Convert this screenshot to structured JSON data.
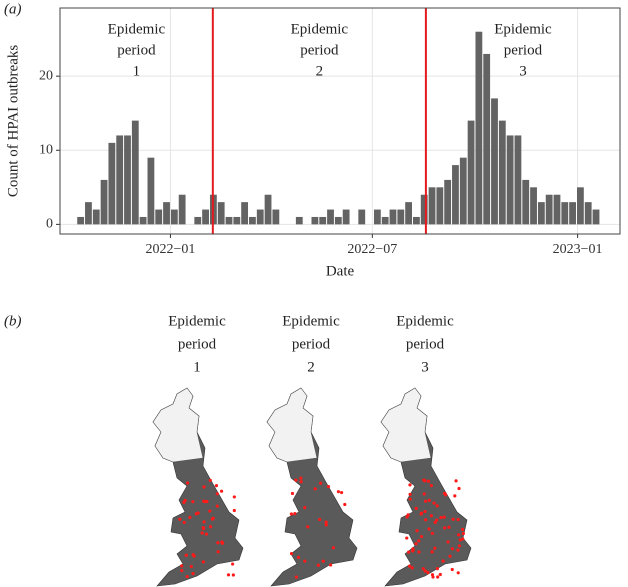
{
  "panel_a_label": "(a)",
  "panel_b_label": "(b)",
  "chart_data": {
    "type": "histogram",
    "ylabel": "Count of HPAI outbreaks",
    "xlabel": "Date",
    "color": "#636363",
    "bins": [
      -84,
      -77,
      -70,
      -63,
      -56,
      -49,
      -42,
      -35,
      -28,
      -21,
      -14,
      -7,
      0,
      7,
      14,
      21,
      28,
      35,
      42,
      49,
      56,
      63,
      70,
      77,
      84,
      91,
      98,
      105,
      112,
      119,
      126,
      133,
      140,
      147,
      154,
      161,
      168,
      175,
      182,
      189,
      196,
      203,
      210,
      217,
      224,
      231,
      238,
      245,
      252,
      259,
      266,
      273,
      280,
      287,
      294,
      301,
      308,
      315,
      322,
      329,
      336,
      343,
      350,
      357,
      364,
      371,
      378,
      385
    ],
    "values": [
      1,
      3,
      2,
      6,
      11,
      12,
      12,
      14,
      1,
      9,
      2,
      3,
      2,
      4,
      0,
      1,
      2,
      4,
      3,
      1,
      1,
      3,
      1,
      2,
      4,
      2,
      0,
      0,
      1,
      0,
      1,
      1,
      2,
      1,
      2,
      0,
      2,
      0,
      2,
      1,
      2,
      2,
      3,
      1,
      4,
      5,
      5,
      6,
      8,
      9,
      14,
      26,
      23,
      17,
      14,
      12,
      12,
      6,
      5,
      3,
      4,
      4,
      3,
      3,
      5,
      3,
      2
    ],
    "xlim": [
      -99,
      403
    ],
    "ylim": [
      -1.3,
      29.2
    ],
    "xticks": [
      {
        "value": 0,
        "label": "2022−01"
      },
      {
        "value": 181,
        "label": "2022−07"
      },
      {
        "value": 365,
        "label": "2023−01"
      }
    ],
    "yticks": [
      0,
      10,
      20
    ],
    "grid": true,
    "vlines": {
      "color": "#e41a1c",
      "values": [
        38,
        229
      ]
    },
    "annotations": [
      [
        "Epidemic",
        "period",
        "1"
      ],
      [
        "Epidemic",
        "period",
        "2"
      ],
      [
        "Epidemic",
        "period",
        "3"
      ]
    ]
  },
  "maps": [
    [
      "Epidemic",
      "period",
      "1"
    ],
    [
      "Epidemic",
      "period",
      "2"
    ],
    [
      "Epidemic",
      "period",
      "3"
    ]
  ]
}
